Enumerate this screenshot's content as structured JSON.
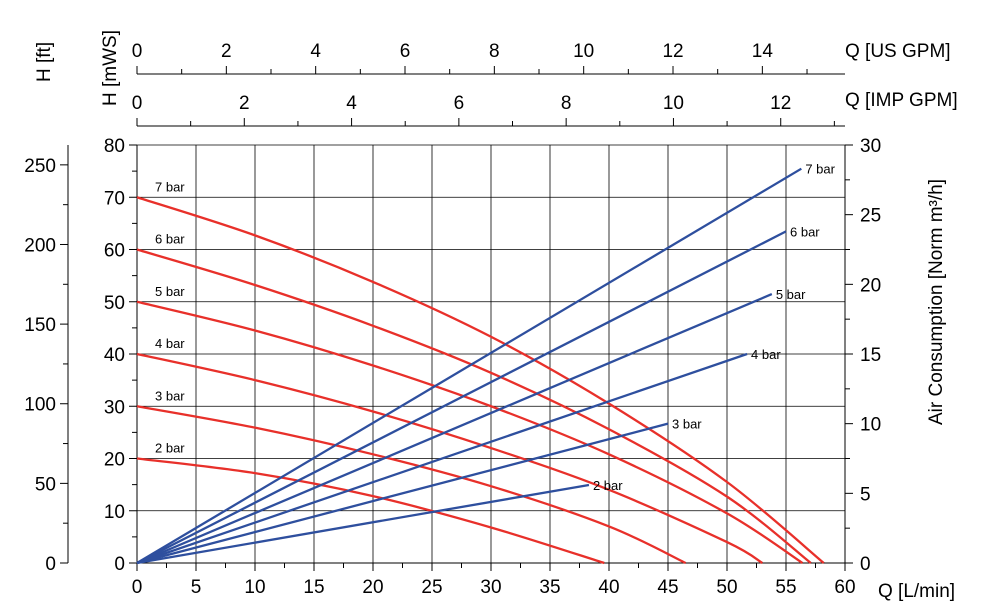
{
  "chart_data": {
    "type": "line",
    "axes": {
      "x_label": "Q [L/min]",
      "x_color": "#e8302a",
      "x_range": [
        0,
        60
      ],
      "x_ticks": [
        0,
        5,
        10,
        15,
        20,
        25,
        30,
        35,
        40,
        45,
        50,
        55,
        60
      ],
      "top_us_label": "Q [US GPM]",
      "top_us_ticks": [
        0,
        2,
        4,
        6,
        8,
        10,
        12,
        14
      ],
      "top_imp_label": "Q [IMP GPM]",
      "top_imp_ticks": [
        0,
        2,
        4,
        6,
        8,
        10,
        12
      ],
      "y_mws_label": "H [mWS]",
      "y_mws_range": [
        0,
        80
      ],
      "y_mws_ticks": [
        0,
        10,
        20,
        30,
        40,
        50,
        60,
        70,
        80
      ],
      "y_ft_label": "H [ft]",
      "y_ft_ticks": [
        0,
        50,
        100,
        150,
        200,
        250
      ],
      "y_air_label": "Air Consumption [Norm m³/h]",
      "y_air_color": "#2e4f9e",
      "y_air_range": [
        0,
        30
      ],
      "y_air_ticks": [
        0,
        5,
        10,
        15,
        20,
        25,
        30
      ]
    },
    "grid": true,
    "head_color": "#e8302a",
    "air_color": "#2e4f9e",
    "head_series": [
      {
        "name": "7 bar",
        "x": [
          0,
          10,
          20,
          30,
          40,
          50,
          58.2
        ],
        "y": [
          70,
          62.7,
          53.8,
          43.3,
          30.5,
          15.5,
          0
        ]
      },
      {
        "name": "6 bar",
        "x": [
          0,
          10,
          20,
          30,
          40,
          50,
          57.1
        ],
        "y": [
          60,
          53.2,
          45.4,
          36.4,
          25.6,
          12.7,
          0
        ]
      },
      {
        "name": "5 bar",
        "x": [
          0,
          10,
          20,
          30,
          40,
          50,
          56.4
        ],
        "y": [
          50,
          44.5,
          37.8,
          30.0,
          20.8,
          9.5,
          0
        ]
      },
      {
        "name": "4 bar",
        "x": [
          0,
          10,
          20,
          30,
          40,
          50,
          53.0
        ],
        "y": [
          40,
          35.0,
          29.0,
          22.0,
          14.0,
          4.0,
          0
        ]
      },
      {
        "name": "3 bar",
        "x": [
          0,
          10,
          20,
          30,
          40,
          46.5
        ],
        "y": [
          30,
          25.9,
          20.8,
          14.7,
          7.0,
          0
        ]
      },
      {
        "name": "2 bar",
        "x": [
          0,
          10,
          20,
          30,
          39.6
        ],
        "y": [
          20,
          17.2,
          12.8,
          6.8,
          0
        ]
      }
    ],
    "air_series": [
      {
        "name": "7 bar",
        "x": [
          0,
          56.3
        ],
        "y": [
          0,
          28.3
        ]
      },
      {
        "name": "6 bar",
        "x": [
          0,
          55.0
        ],
        "y": [
          0,
          23.8
        ]
      },
      {
        "name": "5 bar",
        "x": [
          0,
          53.8
        ],
        "y": [
          0,
          19.3
        ]
      },
      {
        "name": "4 bar",
        "x": [
          0,
          51.7
        ],
        "y": [
          0,
          15.0
        ]
      },
      {
        "name": "3 bar",
        "x": [
          0,
          45.0
        ],
        "y": [
          0,
          10.0
        ]
      },
      {
        "name": "2 bar",
        "x": [
          0,
          38.3
        ],
        "y": [
          0,
          5.6
        ]
      }
    ]
  }
}
